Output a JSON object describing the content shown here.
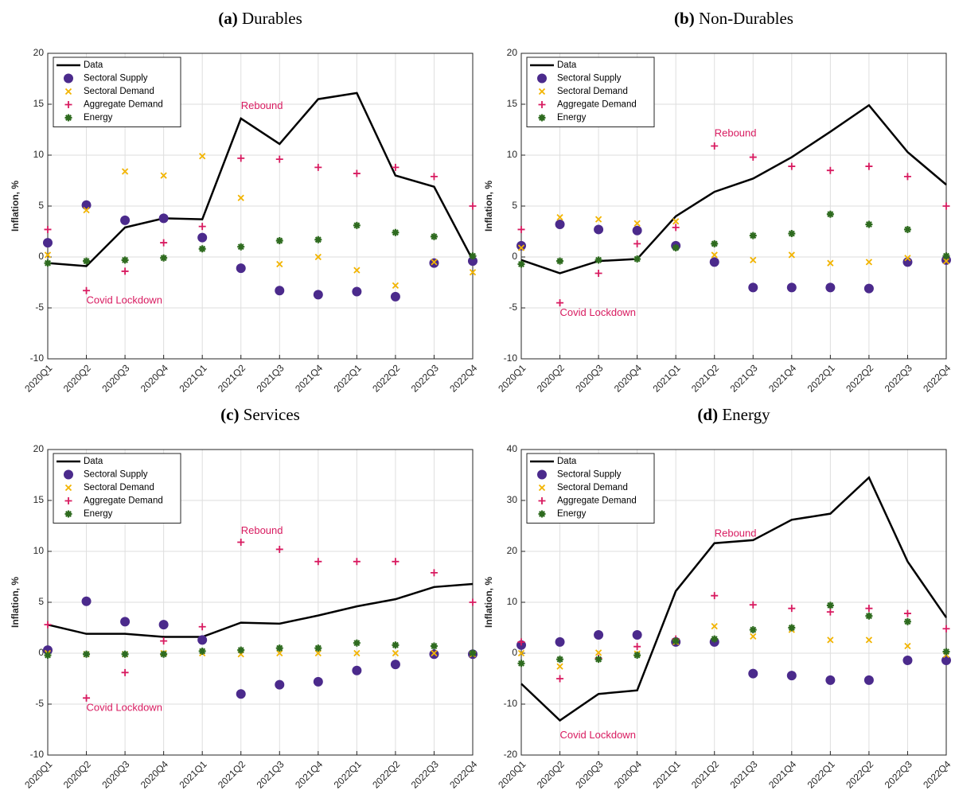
{
  "chart_data": [
    {
      "type": "line",
      "panel": "(a)",
      "title": "Durables",
      "ylabel": "Inflation, %",
      "categories": [
        "2020Q1",
        "2020Q2",
        "2020Q3",
        "2020Q4",
        "2021Q1",
        "2021Q2",
        "2021Q3",
        "2021Q4",
        "2022Q1",
        "2022Q2",
        "2022Q3",
        "2022Q4"
      ],
      "ylim": [
        -10,
        20
      ],
      "yticks": [
        -10,
        -5,
        0,
        5,
        10,
        15,
        20
      ],
      "grid": true,
      "legend": "northwest",
      "series": [
        {
          "name": "Data",
          "color": "#000000",
          "style": "line",
          "values": [
            -0.6,
            -0.9,
            2.9,
            3.8,
            3.7,
            13.6,
            11.1,
            15.5,
            16.1,
            8.0,
            6.9,
            -0.3
          ]
        },
        {
          "name": "Sectoral Supply",
          "color": "#4b2a8c",
          "style": "circle",
          "values": [
            1.4,
            5.1,
            3.6,
            3.8,
            1.9,
            -1.1,
            -3.3,
            -3.7,
            -3.4,
            -3.9,
            -0.6,
            -0.4
          ]
        },
        {
          "name": "Sectoral Demand",
          "color": "#f2b400",
          "style": "x",
          "values": [
            0.2,
            4.6,
            8.4,
            8.0,
            9.9,
            5.8,
            -0.7,
            0.0,
            -1.3,
            -2.8,
            -0.5,
            -1.5
          ]
        },
        {
          "name": "Aggregate Demand",
          "color": "#d81b60",
          "style": "plus",
          "values": [
            2.7,
            -3.3,
            -1.4,
            1.4,
            3.0,
            9.7,
            9.6,
            8.8,
            8.2,
            8.8,
            7.9,
            5.0
          ]
        },
        {
          "name": "Energy",
          "color": "#2e6b1f",
          "style": "asterisk",
          "values": [
            -0.6,
            -0.4,
            -0.3,
            -0.1,
            0.8,
            1.0,
            1.6,
            1.7,
            3.1,
            2.4,
            2.0,
            0.1
          ]
        }
      ],
      "annotations": [
        {
          "text": "Rebound",
          "x": "2021Q2",
          "y": 14.8
        },
        {
          "text": "Covid Lockdown",
          "x": "2020Q2",
          "y": -4.3
        }
      ]
    },
    {
      "type": "line",
      "panel": "(b)",
      "title": "Non-Durables",
      "ylabel": "Inflation, %",
      "categories": [
        "2020Q1",
        "2020Q2",
        "2020Q3",
        "2020Q4",
        "2021Q1",
        "2021Q2",
        "2021Q3",
        "2021Q4",
        "2022Q1",
        "2022Q2",
        "2022Q3",
        "2022Q4"
      ],
      "ylim": [
        -10,
        20
      ],
      "yticks": [
        -10,
        -5,
        0,
        5,
        10,
        15,
        20
      ],
      "grid": true,
      "legend": "northwest",
      "series": [
        {
          "name": "Data",
          "color": "#000000",
          "style": "line",
          "values": [
            -0.3,
            -1.6,
            -0.4,
            -0.2,
            4.0,
            6.4,
            7.7,
            9.8,
            12.3,
            14.9,
            10.3,
            7.1
          ]
        },
        {
          "name": "Sectoral Supply",
          "color": "#4b2a8c",
          "style": "circle",
          "values": [
            1.1,
            3.2,
            2.7,
            2.6,
            1.1,
            -0.5,
            -3.0,
            -3.0,
            -3.0,
            -3.1,
            -0.5,
            -0.3
          ]
        },
        {
          "name": "Sectoral Demand",
          "color": "#f2b400",
          "style": "x",
          "values": [
            0.9,
            3.9,
            3.7,
            3.3,
            3.5,
            0.2,
            -0.3,
            0.2,
            -0.6,
            -0.5,
            -0.1,
            -0.4
          ]
        },
        {
          "name": "Aggregate Demand",
          "color": "#d81b60",
          "style": "plus",
          "values": [
            2.7,
            -4.5,
            -1.6,
            1.3,
            2.9,
            10.9,
            9.8,
            8.9,
            8.5,
            8.9,
            7.9,
            5.0
          ]
        },
        {
          "name": "Energy",
          "color": "#2e6b1f",
          "style": "asterisk",
          "values": [
            -0.7,
            -0.4,
            -0.3,
            -0.2,
            0.9,
            1.3,
            2.1,
            2.3,
            4.2,
            3.2,
            2.7,
            0.1
          ]
        }
      ],
      "annotations": [
        {
          "text": "Rebound",
          "x": "2021Q2",
          "y": 12.1
        },
        {
          "text": "Covid Lockdown",
          "x": "2020Q2",
          "y": -5.5
        }
      ]
    },
    {
      "type": "line",
      "panel": "(c)",
      "title": "Services",
      "ylabel": "Inflation, %",
      "categories": [
        "2020Q1",
        "2020Q2",
        "2020Q3",
        "2020Q4",
        "2021Q1",
        "2021Q2",
        "2021Q3",
        "2021Q4",
        "2022Q1",
        "2022Q2",
        "2022Q3",
        "2022Q4"
      ],
      "ylim": [
        -10,
        20
      ],
      "yticks": [
        -10,
        -5,
        0,
        5,
        10,
        15,
        20
      ],
      "grid": true,
      "legend": "northwest",
      "series": [
        {
          "name": "Data",
          "color": "#000000",
          "style": "line",
          "values": [
            2.8,
            1.9,
            1.9,
            1.6,
            1.6,
            3.0,
            2.9,
            3.7,
            4.6,
            5.3,
            6.5,
            6.8
          ]
        },
        {
          "name": "Sectoral Supply",
          "color": "#4b2a8c",
          "style": "circle",
          "values": [
            0.3,
            5.1,
            3.1,
            2.8,
            1.3,
            -4.0,
            -3.1,
            -2.8,
            -1.7,
            -1.1,
            -0.1,
            -0.1
          ]
        },
        {
          "name": "Sectoral Demand",
          "color": "#f2b400",
          "style": "x",
          "values": [
            0.0,
            -0.1,
            -0.1,
            0.0,
            0.0,
            -0.1,
            0.0,
            0.0,
            0.0,
            0.0,
            0.0,
            -0.1
          ]
        },
        {
          "name": "Aggregate Demand",
          "color": "#d81b60",
          "style": "plus",
          "values": [
            2.8,
            -4.4,
            -1.9,
            1.2,
            2.6,
            10.9,
            10.2,
            9.0,
            9.0,
            9.0,
            7.9,
            5.0
          ]
        },
        {
          "name": "Energy",
          "color": "#2e6b1f",
          "style": "asterisk",
          "values": [
            -0.2,
            -0.1,
            -0.1,
            -0.1,
            0.2,
            0.3,
            0.5,
            0.5,
            1.0,
            0.8,
            0.7,
            0.0
          ]
        }
      ],
      "annotations": [
        {
          "text": "Rebound",
          "x": "2021Q2",
          "y": 12.0
        },
        {
          "text": "Covid Lockdown",
          "x": "2020Q2",
          "y": -5.4
        }
      ]
    },
    {
      "type": "line",
      "panel": "(d)",
      "title": "Energy",
      "ylabel": "Inflation, %",
      "categories": [
        "2020Q1",
        "2020Q2",
        "2020Q3",
        "2020Q4",
        "2021Q1",
        "2021Q2",
        "2021Q3",
        "2021Q4",
        "2022Q1",
        "2022Q2",
        "2022Q3",
        "2022Q4"
      ],
      "ylim": [
        -20,
        40
      ],
      "yticks": [
        -20,
        -10,
        0,
        10,
        20,
        30,
        40
      ],
      "grid": true,
      "legend": "northwest",
      "series": [
        {
          "name": "Data",
          "color": "#000000",
          "style": "line",
          "values": [
            -6.0,
            -13.2,
            -8.0,
            -7.3,
            12.2,
            21.6,
            22.2,
            26.2,
            27.4,
            34.5,
            18.0,
            7.0
          ]
        },
        {
          "name": "Sectoral Supply",
          "color": "#4b2a8c",
          "style": "circle",
          "values": [
            1.6,
            2.2,
            3.6,
            3.6,
            2.2,
            2.2,
            -4.0,
            -4.4,
            -5.3,
            -5.3,
            -1.4,
            -1.4
          ]
        },
        {
          "name": "Sectoral Demand",
          "color": "#f2b400",
          "style": "x",
          "values": [
            0.0,
            -2.6,
            0.1,
            -0.1,
            2.2,
            5.3,
            3.3,
            4.6,
            2.6,
            2.6,
            1.4,
            -0.3
          ]
        },
        {
          "name": "Aggregate Demand",
          "color": "#d81b60",
          "style": "plus",
          "values": [
            2.2,
            -5.0,
            -1.0,
            1.3,
            2.8,
            11.3,
            9.5,
            8.8,
            8.1,
            8.8,
            7.8,
            4.8
          ]
        },
        {
          "name": "Energy",
          "color": "#2e6b1f",
          "style": "asterisk",
          "values": [
            -2.0,
            -1.2,
            -1.2,
            -0.4,
            2.4,
            2.8,
            4.6,
            5.0,
            9.4,
            7.3,
            6.2,
            0.3
          ]
        }
      ],
      "annotations": [
        {
          "text": "Rebound",
          "x": "2021Q2",
          "y": 23.4
        },
        {
          "text": "Covid Lockdown",
          "x": "2020Q2",
          "y": -16.2
        }
      ]
    }
  ]
}
